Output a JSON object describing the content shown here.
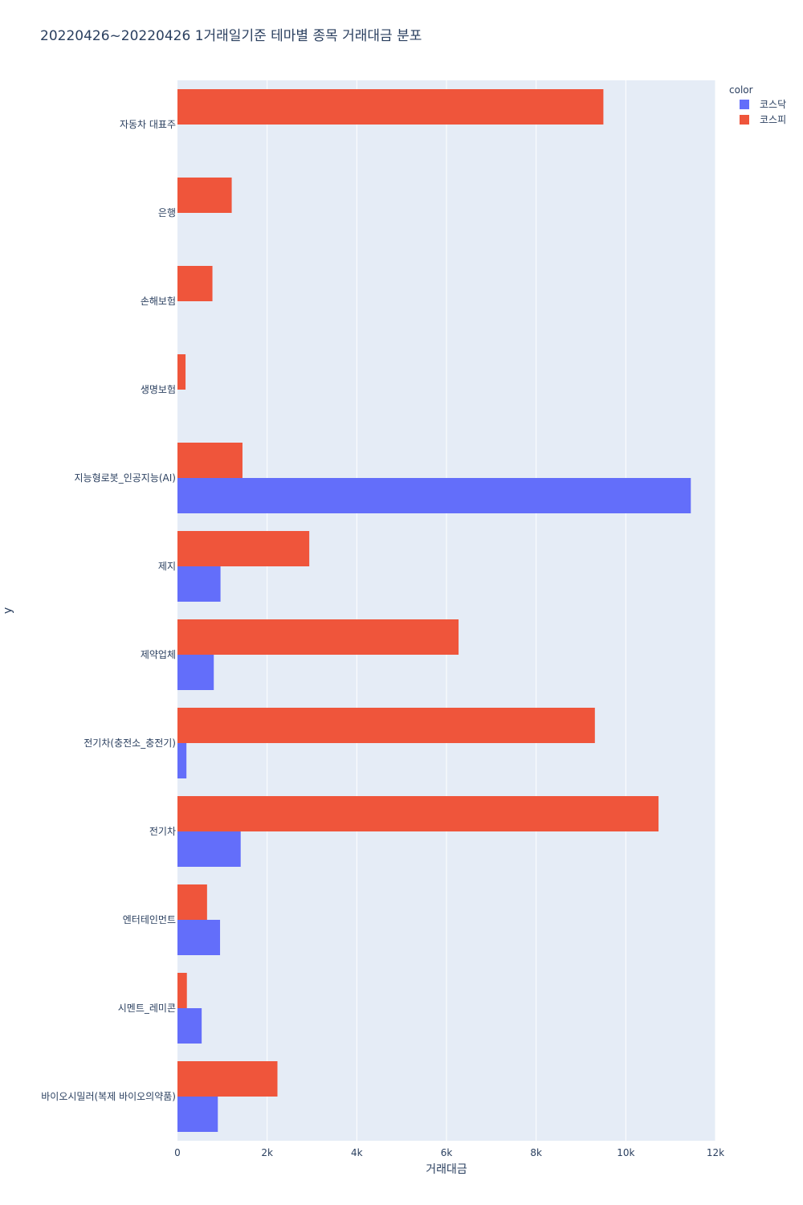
{
  "chart_data": {
    "type": "bar",
    "orientation": "horizontal",
    "barmode": "group",
    "title": "20220426~20220426 1거래일기준 테마별 종목 거래대금 분포",
    "xlabel": "거래대금",
    "ylabel": "y",
    "xlim": [
      0,
      12000
    ],
    "x_ticks": [
      0,
      2000,
      4000,
      6000,
      8000,
      10000,
      12000
    ],
    "x_tick_labels": [
      "0",
      "2k",
      "4k",
      "6k",
      "8k",
      "10k",
      "12k"
    ],
    "grid": true,
    "legend_title": "color",
    "legend_position": "top-right",
    "categories": [
      "자동차 대표주",
      "은행",
      "손해보험",
      "생명보험",
      "지능형로봇_인공지능(AI)",
      "제지",
      "제약업체",
      "전기차(충전소_충전기)",
      "전기차",
      "엔터테인먼트",
      "시멘트_레미콘",
      "바이오시밀러(복제 바이오의약품)"
    ],
    "series": [
      {
        "name": "코스닥",
        "color": "#636efa",
        "values": [
          0,
          0,
          0,
          0,
          11450,
          960,
          810,
          200,
          1410,
          950,
          540,
          900
        ]
      },
      {
        "name": "코스피",
        "color": "#ef553b",
        "values": [
          9500,
          1210,
          780,
          180,
          1450,
          2940,
          6270,
          9310,
          10730,
          660,
          210,
          2230
        ]
      }
    ]
  }
}
